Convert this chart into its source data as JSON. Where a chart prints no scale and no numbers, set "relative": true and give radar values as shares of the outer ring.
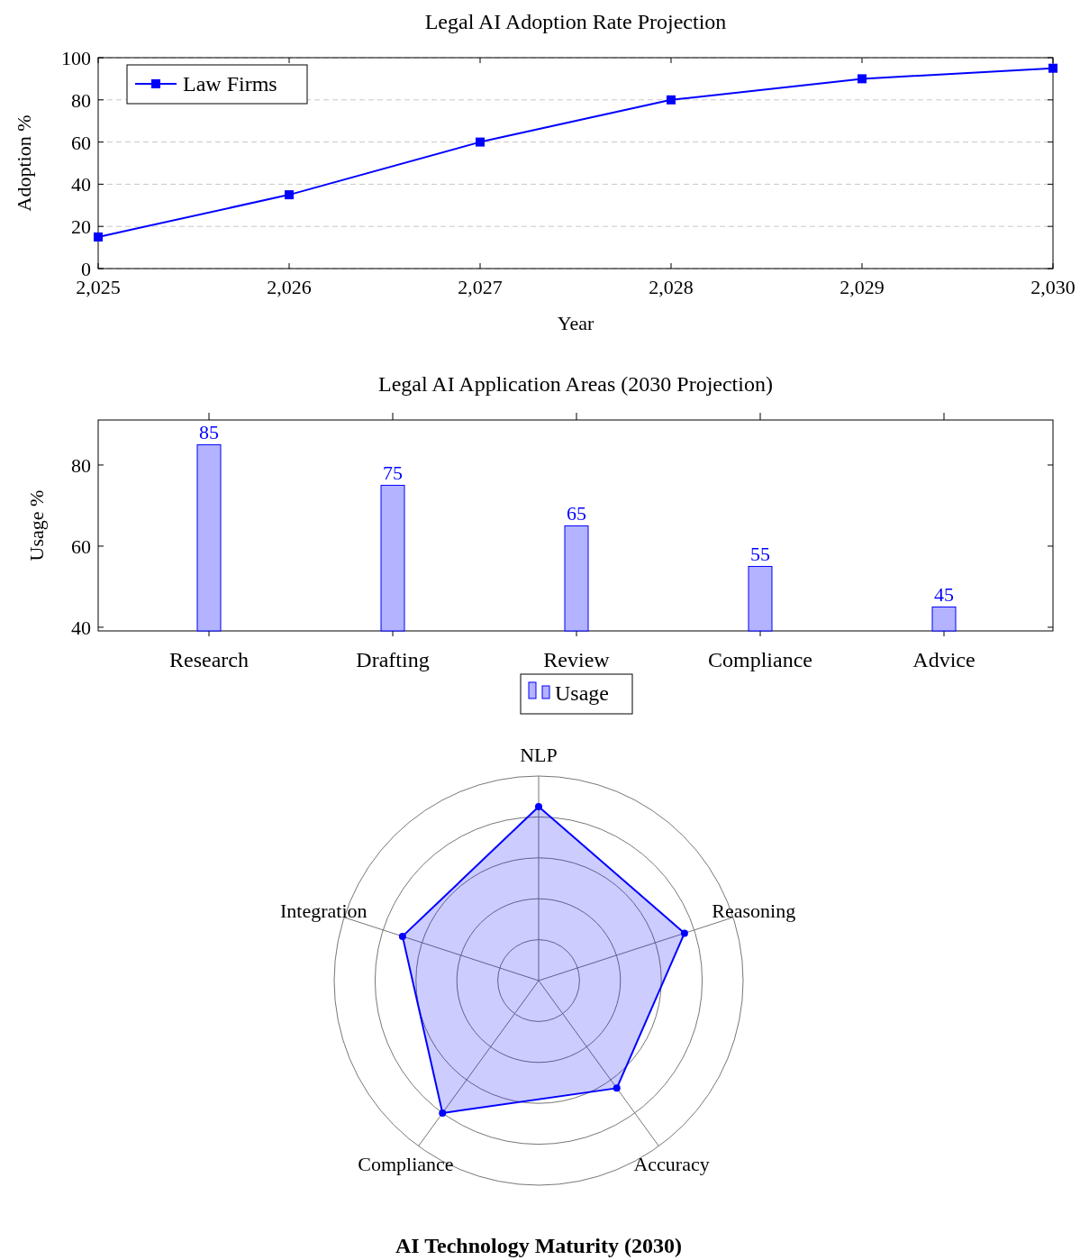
{
  "chart_data": [
    {
      "type": "line",
      "title": "Legal AI Adoption Rate Projection",
      "xlabel": "Year",
      "ylabel": "Adoption %",
      "x": [
        2025,
        2026,
        2027,
        2028,
        2029,
        2030
      ],
      "series": [
        {
          "name": "Law Firms",
          "color": "#0000ff",
          "values": [
            15,
            35,
            60,
            80,
            90,
            95
          ]
        }
      ],
      "xlim": [
        2025,
        2030
      ],
      "xticks": [
        {
          "value": 2025,
          "label": "2,025"
        },
        {
          "value": 2026,
          "label": "2,026"
        },
        {
          "value": 2027,
          "label": "2,027"
        },
        {
          "value": 2028,
          "label": "2,028"
        },
        {
          "value": 2029,
          "label": "2,029"
        },
        {
          "value": 2030,
          "label": "2,030"
        }
      ],
      "ylim": [
        0,
        100
      ],
      "yticks": [
        0,
        20,
        40,
        60,
        80,
        100
      ],
      "grid": "y",
      "legend": "top left",
      "marker": "square",
      "line_style": "solid"
    },
    {
      "type": "bar",
      "title": "Legal AI Application Areas (2030 Projection)",
      "ylabel": "Usage %",
      "categories": [
        "Research",
        "Drafting",
        "Review",
        "Compliance",
        "Advice"
      ],
      "series": [
        {
          "name": "Usage",
          "color": "#b3b3ff",
          "values": [
            85,
            75,
            65,
            55,
            45
          ]
        }
      ],
      "ylim": [
        39.1,
        91.1
      ],
      "yticks": [
        40,
        60,
        80
      ],
      "data_labels": true,
      "legend": "bottom"
    },
    {
      "type": "radar",
      "title": "AI Technology Maturity (2030)",
      "categories": [
        "NLP",
        "Reasoning",
        "Accuracy",
        "Compliance",
        "Integration"
      ],
      "series": [
        {
          "color": "#0000ff",
          "values": [
            0.85,
            0.75,
            0.65,
            0.8,
            0.7
          ]
        }
      ],
      "relative": true,
      "marker": "circle"
    }
  ]
}
